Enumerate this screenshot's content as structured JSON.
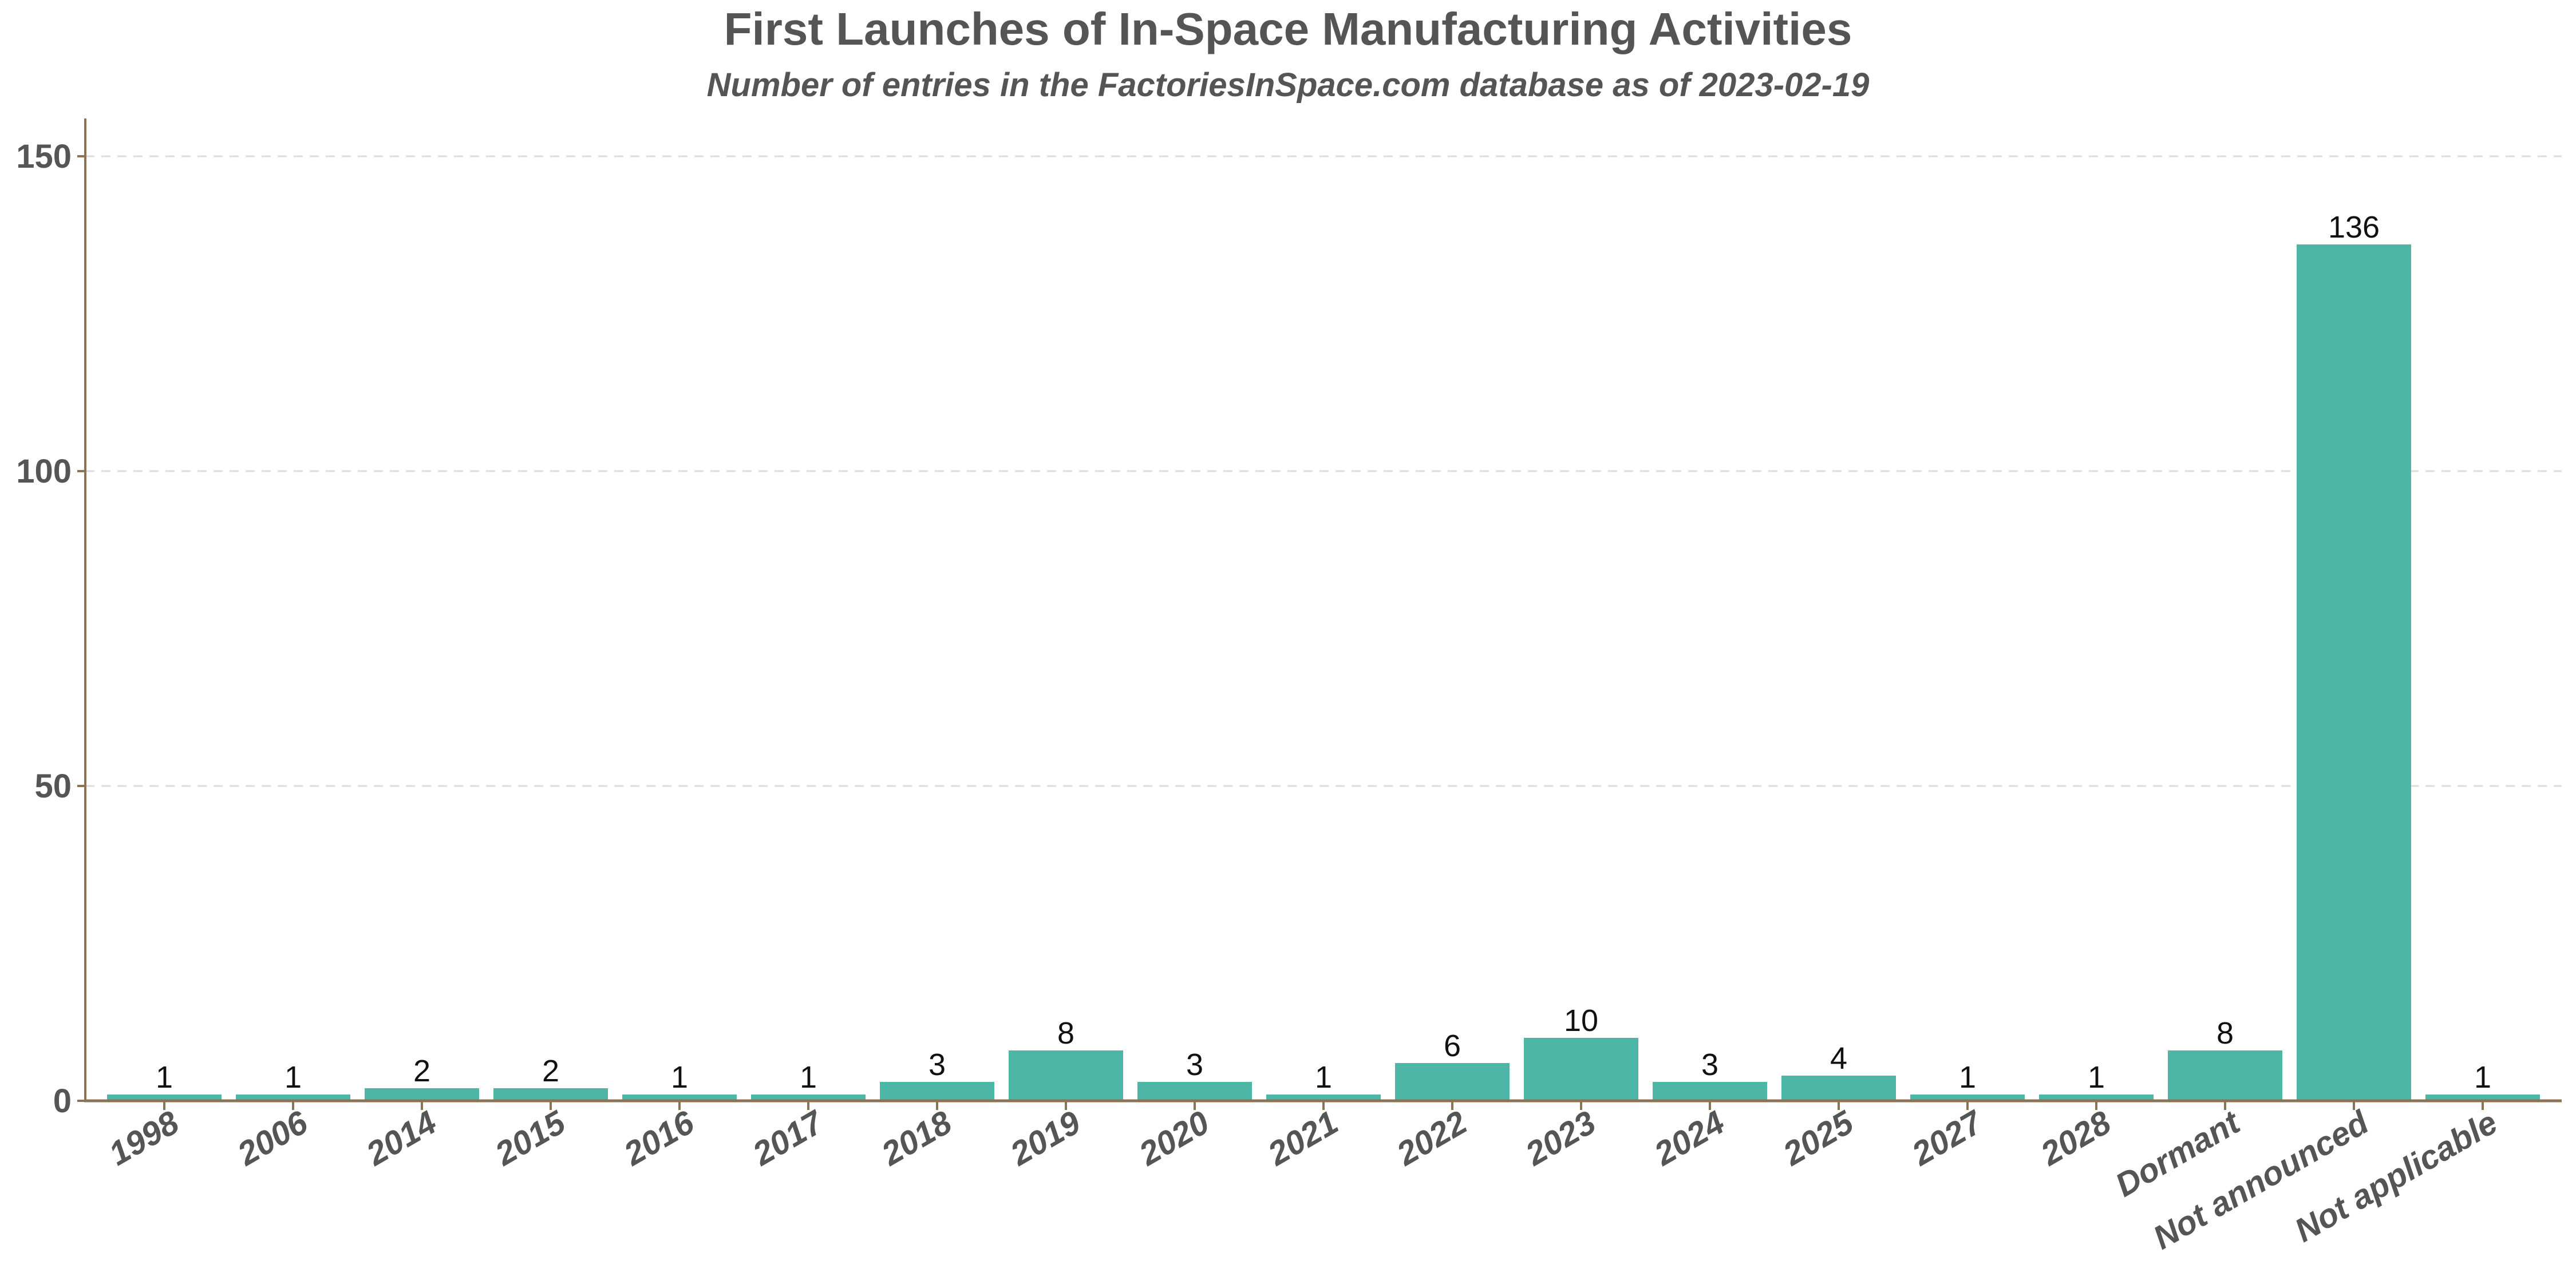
{
  "chart_data": {
    "type": "bar",
    "title": "First Launches of In-Space Manufacturing Activities",
    "subtitle": "Number of entries in the FactoriesInSpace.com database as of 2023-02-19",
    "xlabel": "",
    "ylabel": "",
    "categories": [
      "1998",
      "2006",
      "2014",
      "2015",
      "2016",
      "2017",
      "2018",
      "2019",
      "2020",
      "2021",
      "2022",
      "2023",
      "2024",
      "2025",
      "2027",
      "2028",
      "Dormant",
      "Not announced",
      "Not applicable"
    ],
    "values": [
      1,
      1,
      2,
      2,
      1,
      1,
      3,
      8,
      3,
      1,
      6,
      10,
      3,
      4,
      1,
      1,
      8,
      136,
      1
    ],
    "data_labels": [
      "1",
      "1",
      "2",
      "2",
      "1",
      "1",
      "3",
      "8",
      "3",
      "1",
      "6",
      "10",
      "3",
      "4",
      "1",
      "1",
      "8",
      "136",
      "1"
    ],
    "ylim": [
      0,
      156
    ],
    "yticks": [
      0,
      50,
      100,
      150
    ],
    "ytick_labels": [
      "0",
      "50",
      "100",
      "150"
    ],
    "grid": "horizontal dashed",
    "legend": "none",
    "colors": {
      "bar": "#4db6a7",
      "axis": "#8b7355",
      "grid": "#dddddd",
      "text": "#555555"
    }
  }
}
